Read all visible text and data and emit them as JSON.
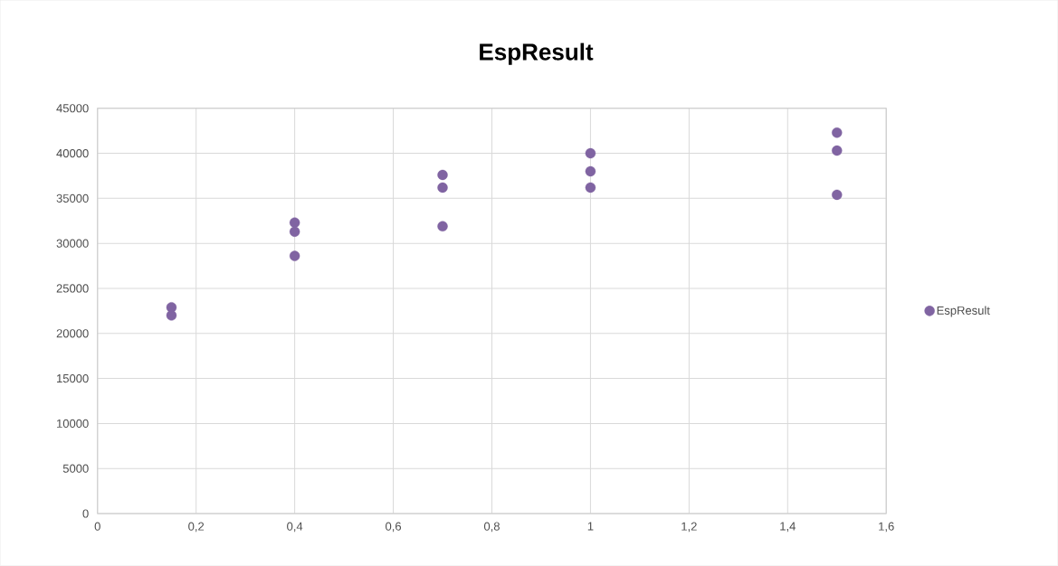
{
  "chart_data": {
    "type": "scatter",
    "title": "EspResult",
    "series": [
      {
        "name": "EspResult",
        "color": "#8064a2",
        "x": [
          0.15,
          0.15,
          0.4,
          0.4,
          0.4,
          0.7,
          0.7,
          0.7,
          1,
          1,
          1,
          1.5,
          1.5,
          1.5
        ],
        "values": [
          22900,
          22000,
          32300,
          31300,
          28600,
          37600,
          36200,
          31900,
          40000,
          38000,
          36200,
          42300,
          40300,
          35400
        ]
      }
    ],
    "xlim": [
      0,
      1.6
    ],
    "ylim": [
      0,
      45000
    ],
    "xticks": [
      0,
      {
        "value": 0.2,
        "label": "0,2"
      },
      {
        "value": 0.4,
        "label": "0,4"
      },
      {
        "value": 0.6,
        "label": "0,6"
      },
      {
        "value": 0.8,
        "label": "0,8"
      },
      1,
      {
        "value": 1.2,
        "label": "1,2"
      },
      {
        "value": 1.4,
        "label": "1,4"
      },
      {
        "value": 1.6,
        "label": "1,6"
      }
    ],
    "yticks": [
      0,
      5000,
      10000,
      15000,
      20000,
      25000,
      30000,
      35000,
      40000,
      45000
    ],
    "grid": true,
    "legend": "right",
    "marker": "circle"
  }
}
